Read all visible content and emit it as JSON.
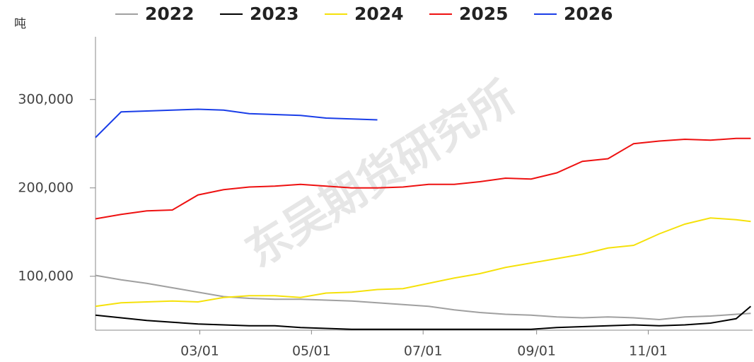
{
  "chart_data": {
    "type": "line",
    "unit": "吨",
    "watermark": "东吴期货研究所",
    "x": [
      3,
      17,
      31,
      45,
      59,
      73,
      87,
      101,
      115,
      129,
      143,
      157,
      171,
      185,
      199,
      213,
      227,
      241,
      255,
      269,
      283,
      297,
      311,
      325,
      339,
      353,
      361
    ],
    "xlim": [
      3,
      362
    ],
    "xticks": [
      {
        "value": 60,
        "label": "03/01"
      },
      {
        "value": 121,
        "label": "05/01"
      },
      {
        "value": 182,
        "label": "07/01"
      },
      {
        "value": 244,
        "label": "09/01"
      },
      {
        "value": 305,
        "label": "11/01"
      }
    ],
    "ylim": [
      39000,
      371000
    ],
    "yticks": [
      {
        "value": 100000,
        "label": "100,000"
      },
      {
        "value": 200000,
        "label": "200,000"
      },
      {
        "value": 300000,
        "label": "300,000"
      }
    ],
    "legend": "top",
    "series": [
      {
        "name": "2022",
        "color": "#a0a0a0",
        "values": [
          101000,
          96000,
          92000,
          87000,
          82000,
          77000,
          75000,
          74000,
          74000,
          73000,
          72000,
          70000,
          68000,
          66000,
          62000,
          59000,
          57000,
          56000,
          54000,
          53000,
          54000,
          53000,
          51000,
          54000,
          55000,
          57000,
          58000
        ]
      },
      {
        "name": "2023",
        "color": "#000000",
        "values": [
          56000,
          53000,
          50000,
          48000,
          46000,
          45000,
          44000,
          44000,
          42000,
          41000,
          40000,
          40000,
          40000,
          40000,
          40000,
          40000,
          40000,
          40000,
          42000,
          43000,
          44000,
          45000,
          44000,
          45000,
          47000,
          52000,
          66000
        ]
      },
      {
        "name": "2024",
        "color": "#f5e10a",
        "values": [
          66000,
          70000,
          71000,
          72000,
          71000,
          76000,
          78000,
          78000,
          76000,
          81000,
          82000,
          85000,
          86000,
          92000,
          98000,
          103000,
          110000,
          115000,
          120000,
          125000,
          132000,
          135000,
          148000,
          159000,
          166000,
          164000,
          162000
        ]
      },
      {
        "name": "2025",
        "color": "#ee1111",
        "values": [
          165000,
          170000,
          174000,
          175000,
          192000,
          198000,
          201000,
          202000,
          204000,
          202000,
          200000,
          200000,
          201000,
          204000,
          204000,
          207000,
          211000,
          210000,
          217000,
          230000,
          233000,
          250000,
          253000,
          255000,
          254000,
          256000,
          256000
        ]
      },
      {
        "name": "2026",
        "color": "#1a3ee8",
        "values": [
          257000,
          286000,
          287000,
          288000,
          289000,
          288000,
          284000,
          283000,
          282000,
          279000,
          278000,
          277000,
          null,
          null,
          null,
          null,
          null,
          null,
          null,
          null,
          null,
          null,
          null,
          null,
          null,
          null,
          null
        ]
      }
    ]
  }
}
